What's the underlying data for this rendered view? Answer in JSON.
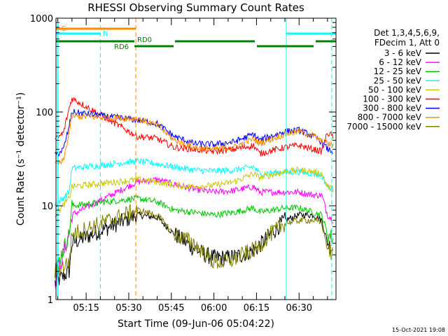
{
  "chart_data": {
    "type": "line",
    "title": "RHESSI Observing Summary Count Rates",
    "xlabel": "Start Time (09-Jun-06 05:04:22)",
    "ylabel": "Count Rate (s⁻¹ detector⁻¹)",
    "y_scale": "log",
    "ylim": [
      1,
      1000
    ],
    "xlim": [
      "05:04:22",
      "06:43:00"
    ],
    "x_ticks": [
      "05:15",
      "05:30",
      "05:45",
      "06:00",
      "06:15",
      "06:30"
    ],
    "y_ticks": [
      "1",
      "10",
      "100",
      "1000"
    ],
    "grid": false,
    "legend_position": "right",
    "legend_header": [
      "Det 1,3,4,5,6,9,",
      "FDecim 1, Att 0"
    ],
    "timestamp": "15-Oct-2021 19:08",
    "series": [
      {
        "name": "3 - 6 keV",
        "color": "#000000",
        "x": [
          "05:04",
          "05:09",
          "05:10",
          "05:33",
          "05:40",
          "05:46",
          "05:53",
          "05:57",
          "06:00",
          "06:05",
          "06:10",
          "06:15",
          "06:20",
          "06:25",
          "06:30",
          "06:35",
          "06:38",
          "06:40",
          "06:42"
        ],
        "y": [
          1.5,
          2,
          4,
          8,
          7.5,
          5,
          3.5,
          3,
          2.8,
          2.8,
          3,
          3.5,
          5,
          7,
          8,
          8,
          7,
          4,
          3.5
        ]
      },
      {
        "name": "6 - 12 keV",
        "color": "#ff00ff",
        "x": [
          "05:04",
          "05:09",
          "05:10",
          "05:33",
          "05:40",
          "05:46",
          "05:53",
          "06:00",
          "06:07",
          "06:14",
          "06:16",
          "06:25",
          "06:30",
          "06:35",
          "06:38",
          "06:40",
          "06:42"
        ],
        "y": [
          1.5,
          5,
          8,
          18,
          19,
          17,
          15,
          14,
          14.5,
          16,
          14,
          14,
          14,
          13,
          13,
          8,
          7
        ]
      },
      {
        "name": "12 - 25 keV",
        "color": "#00c800",
        "x": [
          "05:04",
          "05:09",
          "05:10",
          "05:33",
          "05:40",
          "05:46",
          "05:53",
          "06:00",
          "06:07",
          "06:14",
          "06:16",
          "06:25",
          "06:30",
          "06:35",
          "06:38",
          "06:40",
          "06:42"
        ],
        "y": [
          2,
          5,
          10,
          12,
          11,
          9,
          8.5,
          8,
          8.5,
          9.5,
          8.5,
          9.5,
          9.5,
          8.5,
          8,
          5,
          4.5
        ]
      },
      {
        "name": "25 - 50 keV",
        "color": "#00ffff",
        "x": [
          "05:04",
          "05:09",
          "05:10",
          "05:33",
          "05:40",
          "05:46",
          "05:53",
          "06:00",
          "06:07",
          "06:14",
          "06:16",
          "06:25",
          "06:30",
          "06:35",
          "06:38",
          "06:40",
          "06:42"
        ],
        "y": [
          10,
          14,
          25,
          30,
          28,
          26,
          24,
          23.5,
          24,
          26,
          22,
          23,
          23,
          22,
          21,
          16,
          15
        ]
      },
      {
        "name": "50 - 100 keV",
        "color": "#c8c800",
        "x": [
          "05:04",
          "05:09",
          "05:10",
          "05:33",
          "05:40",
          "05:46",
          "05:53",
          "06:00",
          "06:07",
          "06:14",
          "06:16",
          "06:25",
          "06:30",
          "06:35",
          "06:38",
          "06:40",
          "06:42"
        ],
        "y": [
          8,
          12,
          16,
          19,
          18,
          16.5,
          16,
          16.5,
          18,
          22,
          20,
          23,
          24,
          23,
          22,
          16,
          15
        ]
      },
      {
        "name": "100 - 300 keV",
        "color": "#ff0000",
        "x": [
          "05:04",
          "05:07",
          "05:09",
          "05:10",
          "05:33",
          "05:40",
          "05:46",
          "05:53",
          "06:00",
          "06:07",
          "06:14",
          "06:16",
          "06:25",
          "06:30",
          "06:35",
          "06:38",
          "06:40",
          "06:42"
        ],
        "y": [
          50,
          60,
          110,
          140,
          55,
          52,
          42,
          40,
          38,
          40,
          44,
          36,
          42,
          44,
          40,
          38,
          60,
          55
        ]
      },
      {
        "name": "300 - 800 keV",
        "color": "#0000ff",
        "x": [
          "05:04",
          "05:07",
          "05:09",
          "05:10",
          "05:33",
          "05:40",
          "05:46",
          "05:53",
          "06:00",
          "06:07",
          "06:14",
          "06:16",
          "06:25",
          "06:30",
          "06:35",
          "06:38",
          "06:40",
          "06:42"
        ],
        "y": [
          34,
          40,
          70,
          100,
          82,
          75,
          55,
          46,
          45,
          48,
          58,
          50,
          62,
          64,
          55,
          48,
          40,
          38
        ]
      },
      {
        "name": "800 - 7000 keV",
        "color": "#ff8c00",
        "x": [
          "05:04",
          "05:07",
          "05:09",
          "05:10",
          "05:33",
          "05:40",
          "05:46",
          "05:53",
          "06:00",
          "06:07",
          "06:14",
          "06:16",
          "06:25",
          "06:30",
          "06:35",
          "06:38",
          "06:40",
          "06:42"
        ],
        "y": [
          27,
          30,
          60,
          90,
          85,
          72,
          50,
          42,
          40,
          42,
          52,
          46,
          58,
          62,
          56,
          48,
          46,
          44
        ]
      },
      {
        "name": "7000 - 15000 keV",
        "color": "#808000",
        "x": [
          "05:04",
          "05:09",
          "05:10",
          "05:33",
          "05:40",
          "05:46",
          "05:53",
          "05:57",
          "06:00",
          "06:05",
          "06:10",
          "06:15",
          "06:20",
          "06:25",
          "06:30",
          "06:35",
          "06:38",
          "06:40",
          "06:42"
        ],
        "y": [
          2,
          2.5,
          5,
          9,
          8,
          5,
          4,
          3,
          2.5,
          2.5,
          3,
          3.5,
          5,
          6.5,
          7,
          7,
          6.5,
          3.5,
          3
        ]
      }
    ],
    "status_bars": [
      {
        "label": "S",
        "color": "#ff8c00",
        "x0": "05:04:22",
        "x1": "05:32:30"
      },
      {
        "label": "N",
        "color": "#00ffff",
        "x0": "05:04:22",
        "x1": "05:20:00"
      },
      {
        "label": "N",
        "color": "#00ffff",
        "x0": "06:25:30",
        "x1": "06:43:00"
      },
      {
        "label": "RD6",
        "color": "#008000",
        "x0": "05:04:22",
        "x1": "05:32:00"
      },
      {
        "label": "RD0",
        "color": "#008000",
        "x0": "05:32:00",
        "x1": "06:43:00"
      }
    ],
    "vertical_markers": [
      {
        "x": "05:05:00",
        "color": "#00ffff",
        "style": "solid"
      },
      {
        "x": "05:20:00",
        "color": "#00ffff",
        "style": "dashed"
      },
      {
        "x": "05:32:30",
        "color": "#ff8c00",
        "style": "dashed"
      },
      {
        "x": "06:25:30",
        "color": "#00ffff",
        "style": "solid"
      },
      {
        "x": "06:41:30",
        "color": "#00ffff",
        "style": "dashed"
      }
    ]
  }
}
